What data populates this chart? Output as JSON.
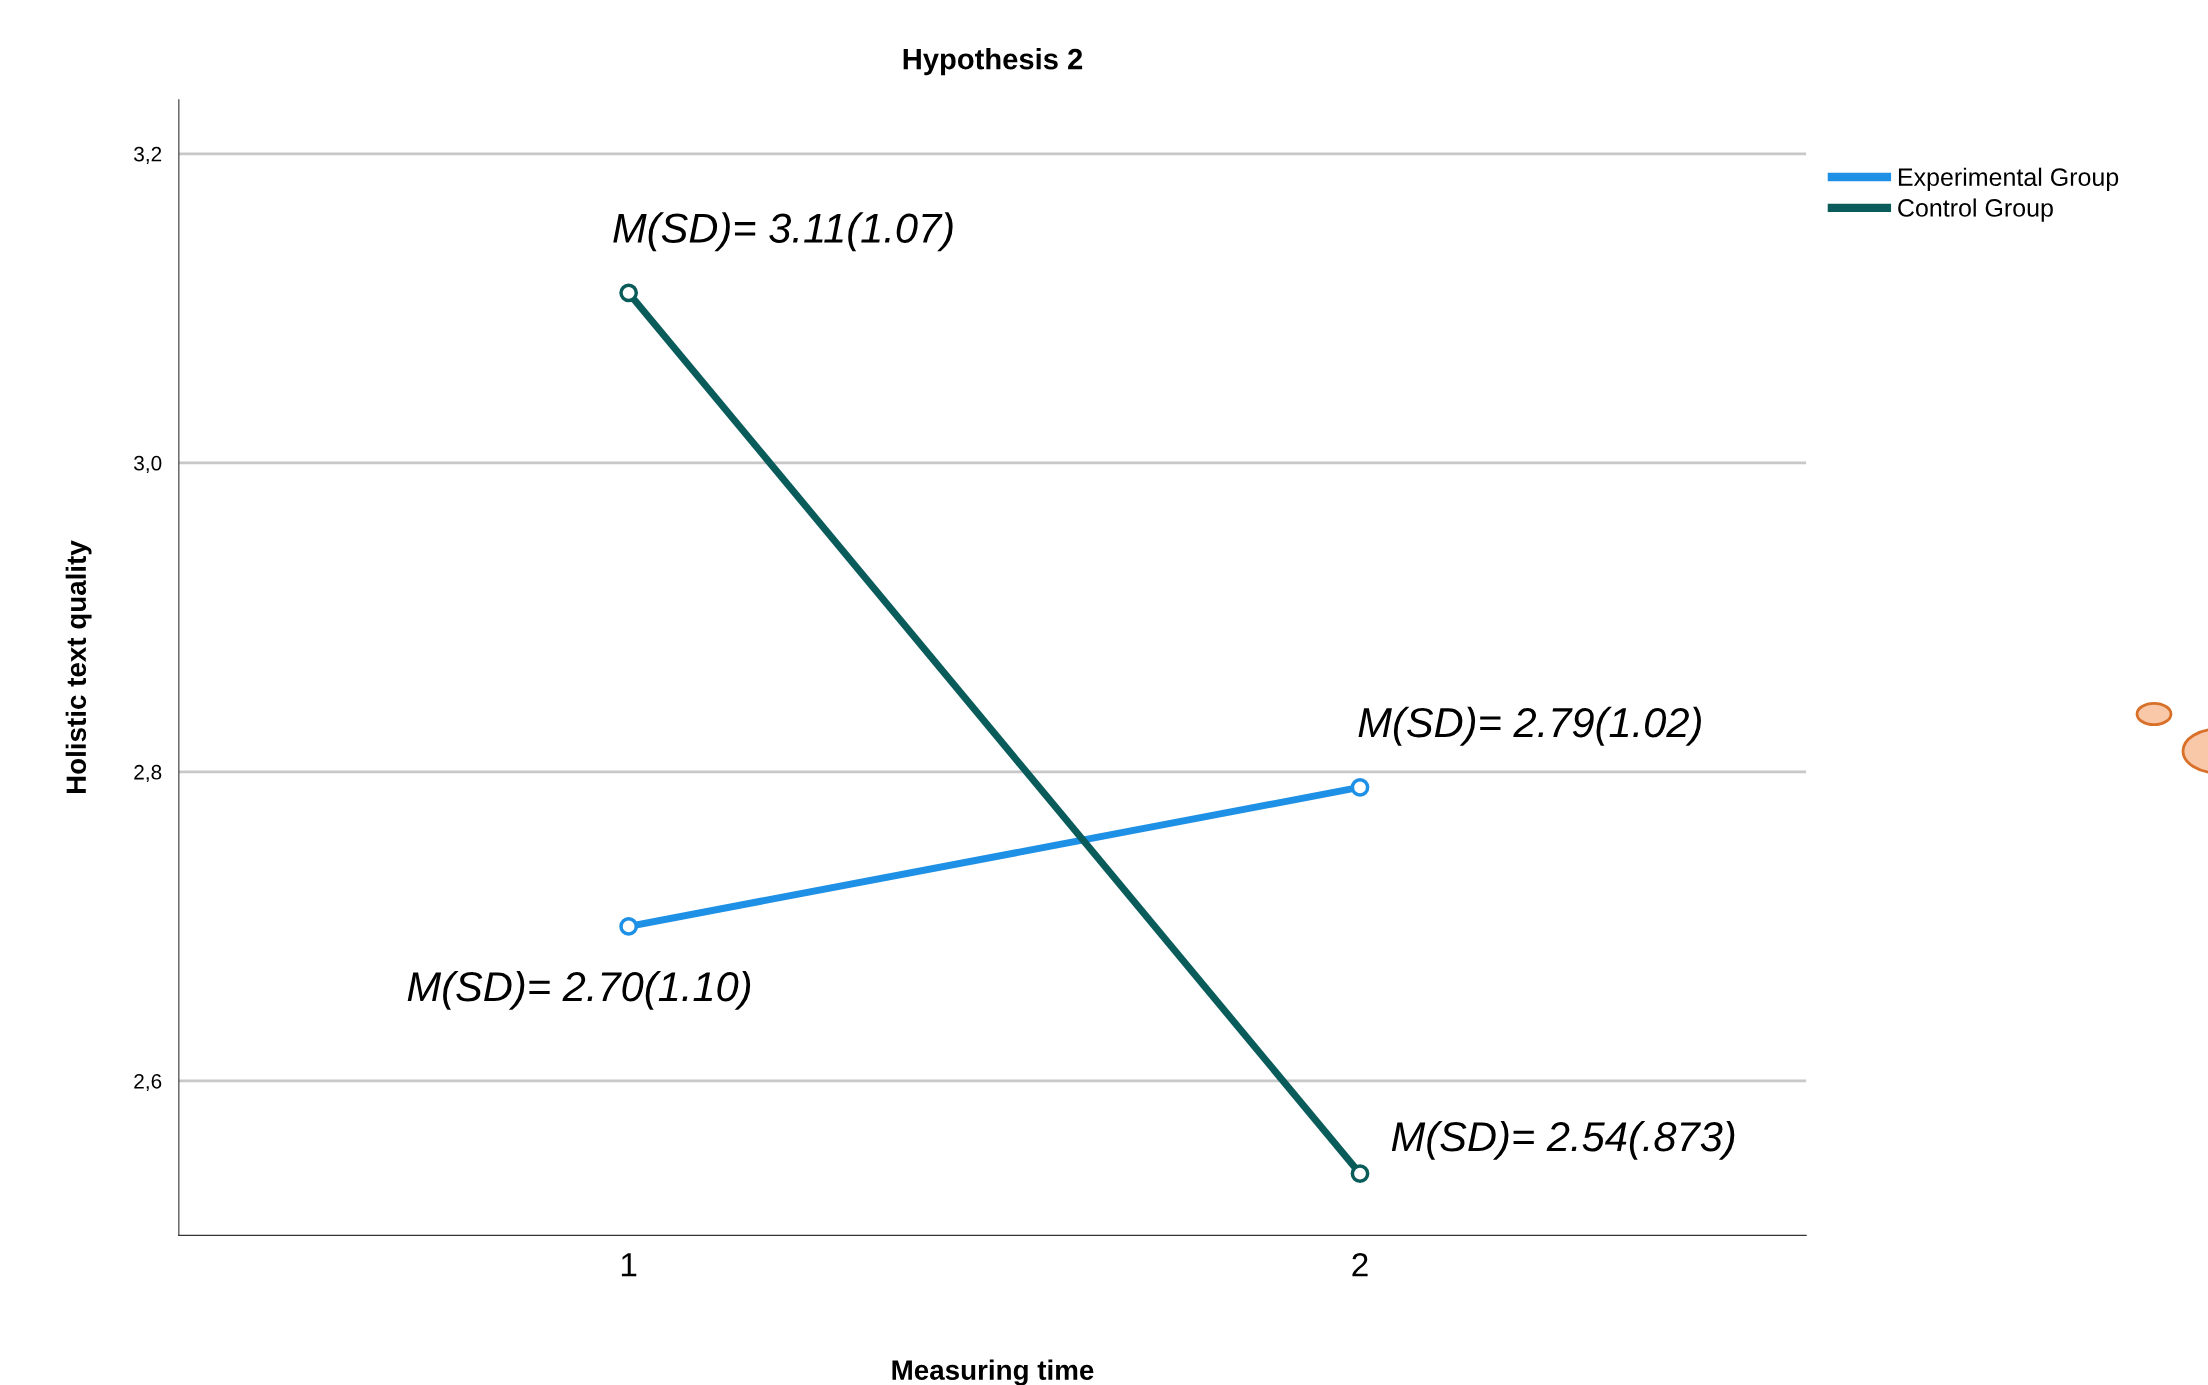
{
  "chart_data": {
    "type": "line",
    "title": "Hypothesis 2",
    "xlabel": "Measuring time",
    "ylabel": "Holistic text quality",
    "categories": [
      "1",
      "2"
    ],
    "series": [
      {
        "name": "Experimental Group",
        "color": "#1e90e6",
        "values": [
          2.7,
          2.79
        ]
      },
      {
        "name": "Control Group",
        "color": "#0a5c5a",
        "values": [
          3.11,
          2.54
        ]
      }
    ],
    "ylim": [
      2.5,
      3.235
    ],
    "yticks": [
      {
        "value": 2.6,
        "label": "2,6"
      },
      {
        "value": 2.8,
        "label": "2,8"
      },
      {
        "value": 3.0,
        "label": "3,0"
      },
      {
        "value": 3.2,
        "label": "3,2"
      }
    ],
    "grid": "y",
    "legend": "top right",
    "marker": "circle",
    "line_style": "solid",
    "annotations": [
      {
        "text": "M(SD)= 3.11(1.07)",
        "x": "1",
        "y": 3.11
      },
      {
        "text": "M(SD)= 2.79(1.02)",
        "x": "2",
        "y": 2.79
      },
      {
        "text": "M(SD)= 2.70(1.10)",
        "x": "1",
        "y": 2.7
      },
      {
        "text": "M(SD)= 2.54(.873)",
        "x": "2",
        "y": 2.54
      }
    ]
  }
}
